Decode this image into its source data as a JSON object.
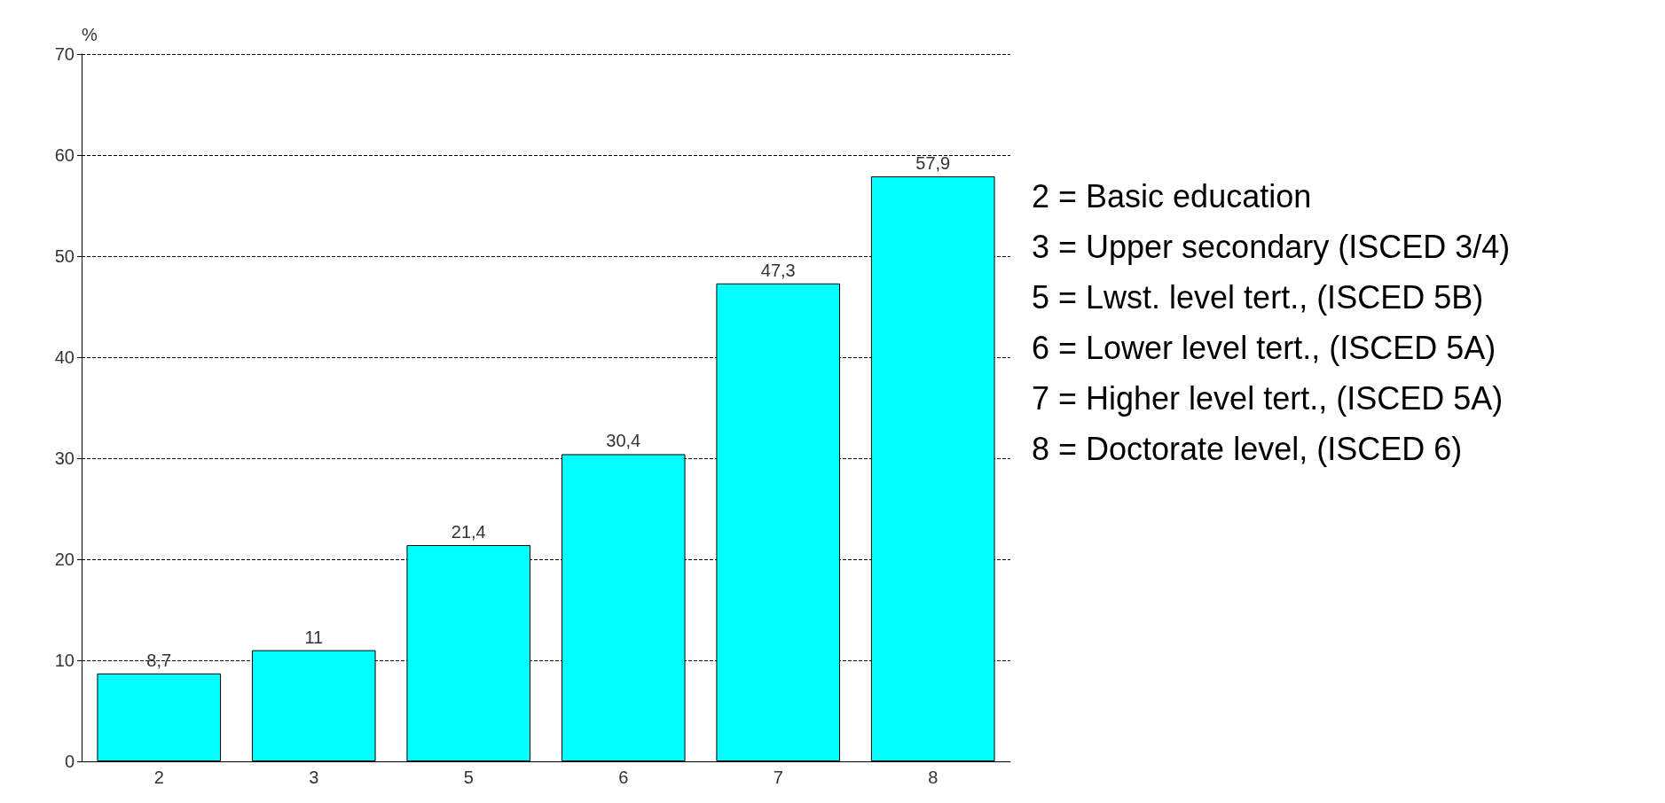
{
  "chart_data": {
    "type": "bar",
    "ylabel": "%",
    "categories": [
      "2",
      "3",
      "5",
      "6",
      "7",
      "8"
    ],
    "values": [
      8.7,
      11,
      21.4,
      30.4,
      47.3,
      57.9
    ],
    "value_labels": [
      "8,7",
      "11",
      "21,4",
      "30,4",
      "47,3",
      "57,9"
    ],
    "color": "#00ffff",
    "ylim": [
      0,
      70
    ],
    "yticks": [
      0,
      10,
      20,
      30,
      40,
      50,
      60,
      70
    ],
    "grid": "y",
    "line_style": "dashed",
    "annotations": [
      "2 = Basic education",
      "3 = Upper secondary (ISCED 3/4)",
      "5 = Lwst. level tert., (ISCED 5B)",
      "6 = Lower level tert., (ISCED 5A)",
      "7 = Higher level tert., (ISCED 5A)",
      "8 = Doctorate level, (ISCED 6)"
    ]
  }
}
